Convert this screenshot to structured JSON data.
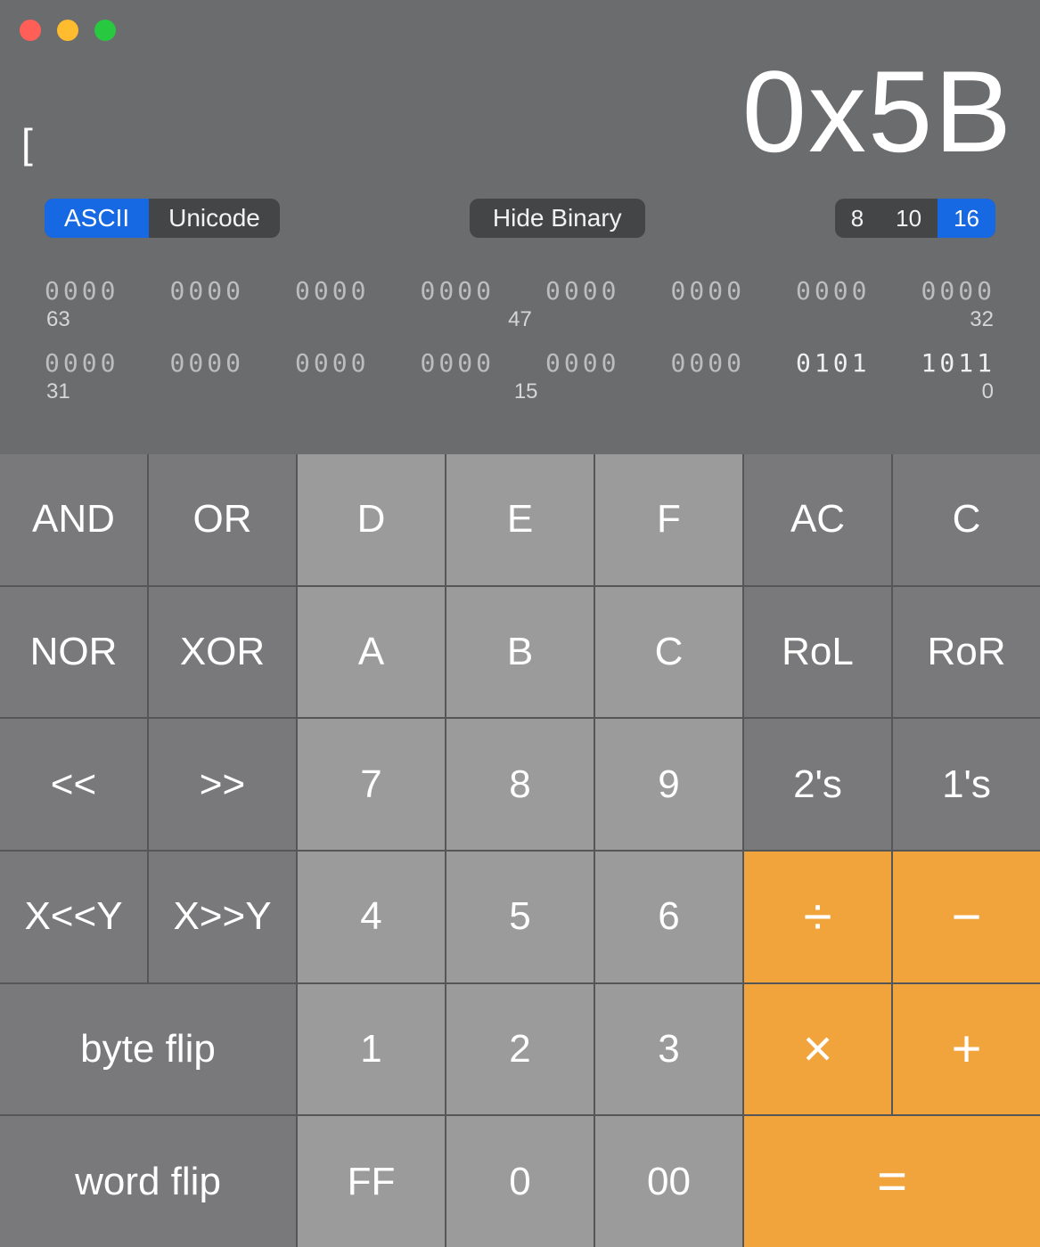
{
  "colors": {
    "window_bg": "#6b6c6e",
    "traffic_close": "#ff5f57",
    "traffic_min": "#febc2e",
    "traffic_max": "#28c840",
    "segment_bg": "#444547",
    "segment_active": "#1668e3",
    "key_dark": "#79797b",
    "key_light": "#9b9b9c",
    "key_operator": "#f1a33c",
    "key_gap": "#555658",
    "text_primary": "#ffffff",
    "binary_dim": "#bdbdbd",
    "binary_on": "#f0f0f0"
  },
  "display": {
    "ascii_char": "[",
    "value": "0x5B"
  },
  "controls": {
    "encoding": {
      "options": [
        "ASCII",
        "Unicode"
      ],
      "active": "ASCII"
    },
    "hide_binary_label": "Hide Binary",
    "base": {
      "options": [
        "8",
        "10",
        "16"
      ],
      "active": "16"
    }
  },
  "binary": {
    "font_family": "Menlo, Consolas, monospace",
    "font_size_bits": 28,
    "font_size_index": 24,
    "upper": {
      "nibbles": [
        "0000",
        "0000",
        "0000",
        "0000",
        "0000",
        "0000",
        "0000",
        "0000"
      ],
      "on_mask": [
        0,
        0,
        0,
        0,
        0,
        0,
        0,
        0
      ],
      "indices": [
        "63",
        "47",
        "32"
      ]
    },
    "lower": {
      "nibbles": [
        "0000",
        "0000",
        "0000",
        "0000",
        "0000",
        "0000",
        "0101",
        "1011"
      ],
      "on_mask": [
        0,
        0,
        0,
        0,
        0,
        0,
        1,
        1
      ],
      "indices": [
        "31",
        "15",
        "0"
      ]
    }
  },
  "keypad": {
    "rows": [
      [
        {
          "id": "and",
          "label": "AND",
          "style": "dark"
        },
        {
          "id": "or",
          "label": "OR",
          "style": "dark"
        },
        {
          "id": "hex-d",
          "label": "D",
          "style": "light"
        },
        {
          "id": "hex-e",
          "label": "E",
          "style": "light"
        },
        {
          "id": "hex-f",
          "label": "F",
          "style": "light"
        },
        {
          "id": "ac",
          "label": "AC",
          "style": "dark"
        },
        {
          "id": "clear",
          "label": "C",
          "style": "dark"
        }
      ],
      [
        {
          "id": "nor",
          "label": "NOR",
          "style": "dark"
        },
        {
          "id": "xor",
          "label": "XOR",
          "style": "dark"
        },
        {
          "id": "hex-a",
          "label": "A",
          "style": "light"
        },
        {
          "id": "hex-b",
          "label": "B",
          "style": "light"
        },
        {
          "id": "hex-c",
          "label": "C",
          "style": "light"
        },
        {
          "id": "rol",
          "label": "RoL",
          "style": "dark"
        },
        {
          "id": "ror",
          "label": "RoR",
          "style": "dark"
        }
      ],
      [
        {
          "id": "shl",
          "label": "<<",
          "style": "dark"
        },
        {
          "id": "shr",
          "label": ">>",
          "style": "dark"
        },
        {
          "id": "d7",
          "label": "7",
          "style": "light"
        },
        {
          "id": "d8",
          "label": "8",
          "style": "light"
        },
        {
          "id": "d9",
          "label": "9",
          "style": "light"
        },
        {
          "id": "twos",
          "label": "2's",
          "style": "dark"
        },
        {
          "id": "ones",
          "label": "1's",
          "style": "dark"
        }
      ],
      [
        {
          "id": "xshly",
          "label": "X<<Y",
          "style": "dark"
        },
        {
          "id": "xshry",
          "label": "X>>Y",
          "style": "dark"
        },
        {
          "id": "d4",
          "label": "4",
          "style": "light"
        },
        {
          "id": "d5",
          "label": "5",
          "style": "light"
        },
        {
          "id": "d6",
          "label": "6",
          "style": "light"
        },
        {
          "id": "divide",
          "label": "÷",
          "style": "op"
        },
        {
          "id": "minus",
          "label": "−",
          "style": "op"
        }
      ],
      [
        {
          "id": "byte-flip",
          "label": "byte flip",
          "style": "dark",
          "span": 2
        },
        {
          "id": "d1",
          "label": "1",
          "style": "light"
        },
        {
          "id": "d2",
          "label": "2",
          "style": "light"
        },
        {
          "id": "d3",
          "label": "3",
          "style": "light"
        },
        {
          "id": "multiply",
          "label": "×",
          "style": "op"
        },
        {
          "id": "plus",
          "label": "+",
          "style": "op"
        }
      ],
      [
        {
          "id": "word-flip",
          "label": "word flip",
          "style": "dark",
          "span": 2
        },
        {
          "id": "ff",
          "label": "FF",
          "style": "light"
        },
        {
          "id": "d0",
          "label": "0",
          "style": "light"
        },
        {
          "id": "dbl0",
          "label": "00",
          "style": "light"
        },
        {
          "id": "equals",
          "label": "=",
          "style": "op",
          "span": 2
        }
      ]
    ]
  }
}
